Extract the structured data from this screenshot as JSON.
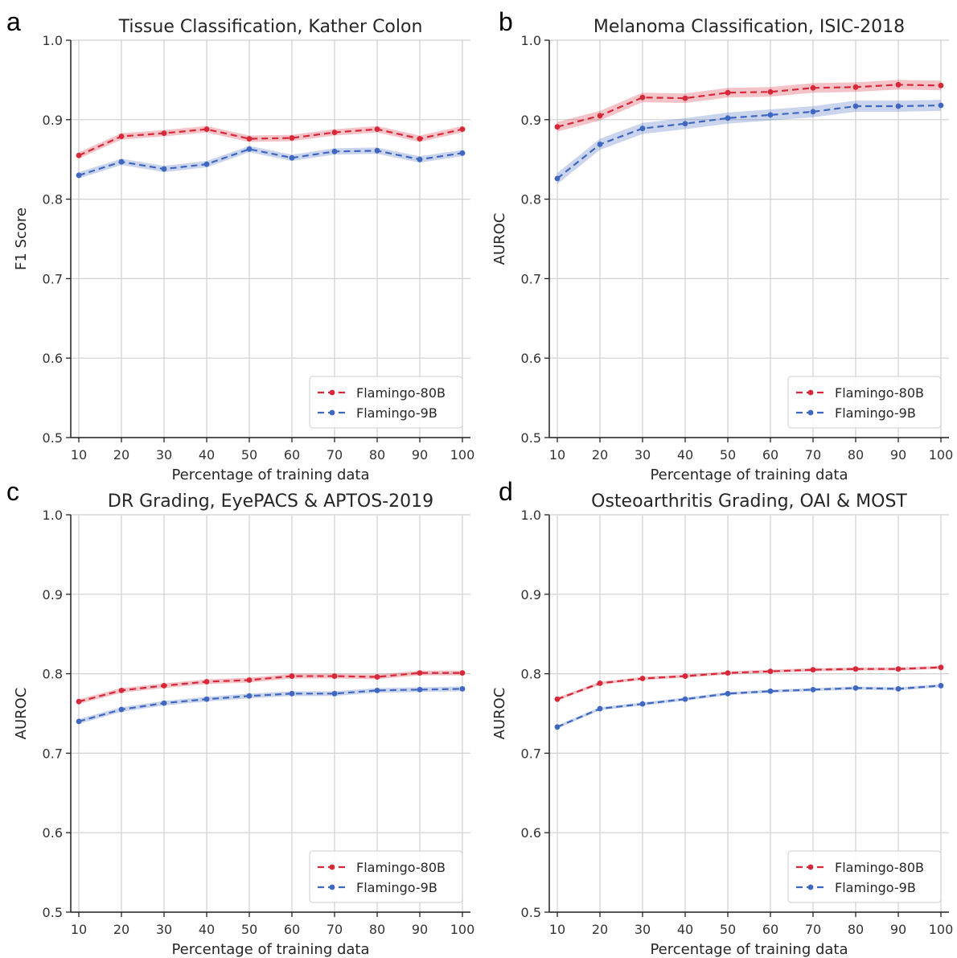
{
  "colors": {
    "series_80b": "#d62839",
    "series_9b": "#3f67c0",
    "grid": "#d0d0d0",
    "axis": "#222222"
  },
  "chart_data": [
    {
      "panel": "a",
      "type": "line",
      "title": "Tissue Classification, Kather Colon",
      "xlabel": "Percentage of training data",
      "ylabel": "F1 Score",
      "x": [
        10,
        20,
        30,
        40,
        50,
        60,
        70,
        80,
        90,
        100
      ],
      "xticks": [
        "10",
        "20",
        "30",
        "40",
        "50",
        "60",
        "70",
        "80",
        "90",
        "100"
      ],
      "yticks": [
        "0.5",
        "0.6",
        "0.7",
        "0.8",
        "0.9",
        "1.0"
      ],
      "ylim": [
        0.5,
        1.0
      ],
      "grid": true,
      "legend": "lower right",
      "series": [
        {
          "name": "Flamingo-80B",
          "values": [
            0.855,
            0.879,
            0.883,
            0.888,
            0.876,
            0.877,
            0.884,
            0.888,
            0.876,
            0.888
          ],
          "band": 0.004
        },
        {
          "name": "Flamingo-9B",
          "values": [
            0.83,
            0.847,
            0.838,
            0.844,
            0.863,
            0.852,
            0.86,
            0.861,
            0.85,
            0.858
          ],
          "band": 0.004
        }
      ]
    },
    {
      "panel": "b",
      "type": "line",
      "title": "Melanoma Classification, ISIC-2018",
      "xlabel": "Percentage of training data",
      "ylabel": "AUROC",
      "x": [
        10,
        20,
        30,
        40,
        50,
        60,
        70,
        80,
        90,
        100
      ],
      "xticks": [
        "10",
        "20",
        "30",
        "40",
        "50",
        "60",
        "70",
        "80",
        "90",
        "100"
      ],
      "yticks": [
        "0.5",
        "0.6",
        "0.7",
        "0.8",
        "0.9",
        "1.0"
      ],
      "ylim": [
        0.5,
        1.0
      ],
      "grid": true,
      "legend": "lower right",
      "series": [
        {
          "name": "Flamingo-80B",
          "values": [
            0.891,
            0.905,
            0.928,
            0.927,
            0.934,
            0.935,
            0.94,
            0.941,
            0.944,
            0.943
          ],
          "band": 0.006
        },
        {
          "name": "Flamingo-9B",
          "values": [
            0.826,
            0.869,
            0.889,
            0.895,
            0.902,
            0.906,
            0.91,
            0.917,
            0.917,
            0.918
          ],
          "band": 0.007
        }
      ]
    },
    {
      "panel": "c",
      "type": "line",
      "title": "DR Grading, EyePACS & APTOS-2019",
      "xlabel": "Percentage of training data",
      "ylabel": "AUROC",
      "x": [
        10,
        20,
        30,
        40,
        50,
        60,
        70,
        80,
        90,
        100
      ],
      "xticks": [
        "10",
        "20",
        "30",
        "40",
        "50",
        "60",
        "70",
        "80",
        "90",
        "100"
      ],
      "yticks": [
        "0.5",
        "0.6",
        "0.7",
        "0.8",
        "0.9",
        "1.0"
      ],
      "ylim": [
        0.5,
        1.0
      ],
      "grid": true,
      "legend": "lower right",
      "series": [
        {
          "name": "Flamingo-80B",
          "values": [
            0.765,
            0.779,
            0.785,
            0.79,
            0.792,
            0.797,
            0.797,
            0.796,
            0.801,
            0.801
          ],
          "band": 0.003
        },
        {
          "name": "Flamingo-9B",
          "values": [
            0.74,
            0.755,
            0.763,
            0.768,
            0.772,
            0.775,
            0.775,
            0.779,
            0.78,
            0.781
          ],
          "band": 0.003
        }
      ]
    },
    {
      "panel": "d",
      "type": "line",
      "title": "Osteoarthritis Grading, OAI & MOST",
      "xlabel": "Percentage of training data",
      "ylabel": "AUROC",
      "x": [
        10,
        20,
        30,
        40,
        50,
        60,
        70,
        80,
        90,
        100
      ],
      "xticks": [
        "10",
        "20",
        "30",
        "40",
        "50",
        "60",
        "70",
        "80",
        "90",
        "100"
      ],
      "yticks": [
        "0.5",
        "0.6",
        "0.7",
        "0.8",
        "0.9",
        "1.0"
      ],
      "ylim": [
        0.5,
        1.0
      ],
      "grid": true,
      "legend": "lower right",
      "series": [
        {
          "name": "Flamingo-80B",
          "values": [
            0.768,
            0.788,
            0.794,
            0.797,
            0.801,
            0.803,
            0.805,
            0.806,
            0.806,
            0.808
          ],
          "band": 0.002
        },
        {
          "name": "Flamingo-9B",
          "values": [
            0.733,
            0.756,
            0.762,
            0.768,
            0.775,
            0.778,
            0.78,
            0.782,
            0.781,
            0.785
          ],
          "band": 0.002
        }
      ]
    }
  ]
}
